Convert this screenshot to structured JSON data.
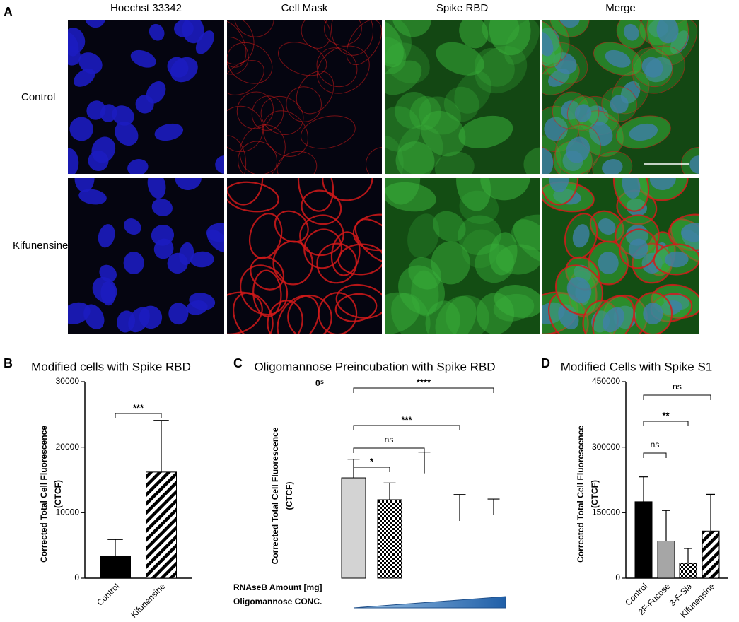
{
  "panel_a": {
    "panel_label": "A",
    "columns": [
      "Hoechst 33342",
      "Cell Mask",
      "Spike RBD",
      "Merge"
    ],
    "rows": [
      "Control",
      "Kifunensine"
    ]
  },
  "chart_data": [
    {
      "type": "bar",
      "panel_label": "B",
      "title": "Modified cells with Spike RBD",
      "ylabel": [
        "Corrected Total Cell Fluorescence",
        "(CTCF)"
      ],
      "categories": [
        "Control",
        "Kifunensine"
      ],
      "values": [
        3400,
        16200
      ],
      "errors": [
        2500,
        7900
      ],
      "fills": [
        "#000000",
        "diagonal"
      ],
      "ylim": [
        0,
        30000
      ],
      "yticks": [
        0,
        10000,
        20000,
        30000
      ],
      "significance": [
        {
          "pair": [
            0,
            1
          ],
          "label": "***"
        }
      ]
    },
    {
      "type": "bar",
      "panel_label": "C",
      "title": "Oligomannose Preincubation with Spike RBD",
      "axis_text": "0⁵",
      "ylabel": [
        "Corrected Total Cell Fluorescence",
        "(CTCF)"
      ],
      "categories": [
        null,
        null,
        null,
        null,
        null
      ],
      "values": [
        1.56,
        1.22,
        1.63,
        0.89,
        0.98
      ],
      "errors": [
        0.29,
        0.26,
        0.33,
        0.41,
        0.25
      ],
      "fills": [
        "#d3d3d3",
        "checker",
        "none",
        "none",
        "none"
      ],
      "ylim": [
        0,
        3
      ],
      "significance": [
        {
          "pair": [
            0,
            1
          ],
          "label": "*"
        },
        {
          "pair": [
            0,
            2
          ],
          "label": "ns"
        },
        {
          "pair": [
            0,
            3
          ],
          "label": "***"
        },
        {
          "pair": [
            0,
            4
          ],
          "label": "****"
        }
      ],
      "annotations": [
        "RNAseB Amount [mg]",
        "Oligomannose CONC."
      ]
    },
    {
      "type": "bar",
      "panel_label": "D",
      "title": "Modified Cells with Spike S1",
      "ylabel": [
        "Corrected Total Cell Fluorescence",
        "(CTCF)"
      ],
      "categories": [
        "Control",
        "2F-Fucose",
        "3-F-Sia",
        "Kifunensine"
      ],
      "values": [
        175000,
        85000,
        34000,
        108000
      ],
      "errors": [
        57000,
        70000,
        34000,
        84000
      ],
      "fills": [
        "#000000",
        "#a6a6a6",
        "checker",
        "diagonal"
      ],
      "ylim": [
        0,
        450000
      ],
      "yticks": [
        0,
        150000,
        300000,
        450000
      ],
      "significance": [
        {
          "pair": [
            0,
            1
          ],
          "label": "ns"
        },
        {
          "pair": [
            0,
            2
          ],
          "label": "**"
        },
        {
          "pair": [
            0,
            3
          ],
          "label": "ns"
        }
      ]
    }
  ]
}
